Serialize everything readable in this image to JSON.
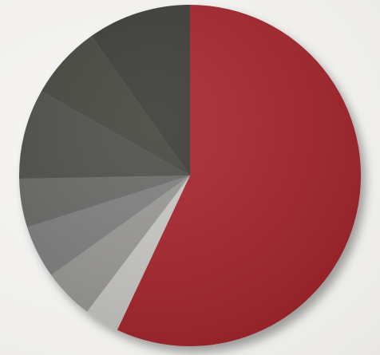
{
  "chart_data": {
    "type": "pie",
    "title": "",
    "start_angle_deg": 0,
    "direction": "clockwise",
    "slices": [
      {
        "value": 57.0,
        "color": "#a7262d"
      },
      {
        "value": 3.3,
        "color": "#c9c8c5"
      },
      {
        "value": 4.8,
        "color": "#9a9996"
      },
      {
        "value": 5.0,
        "color": "#808080"
      },
      {
        "value": 4.6,
        "color": "#6a6a67"
      },
      {
        "value": 8.5,
        "color": "#4f4f4b"
      },
      {
        "value": 7.0,
        "color": "#47473f"
      },
      {
        "value": 9.8,
        "color": "#3c3c37"
      }
    ]
  }
}
